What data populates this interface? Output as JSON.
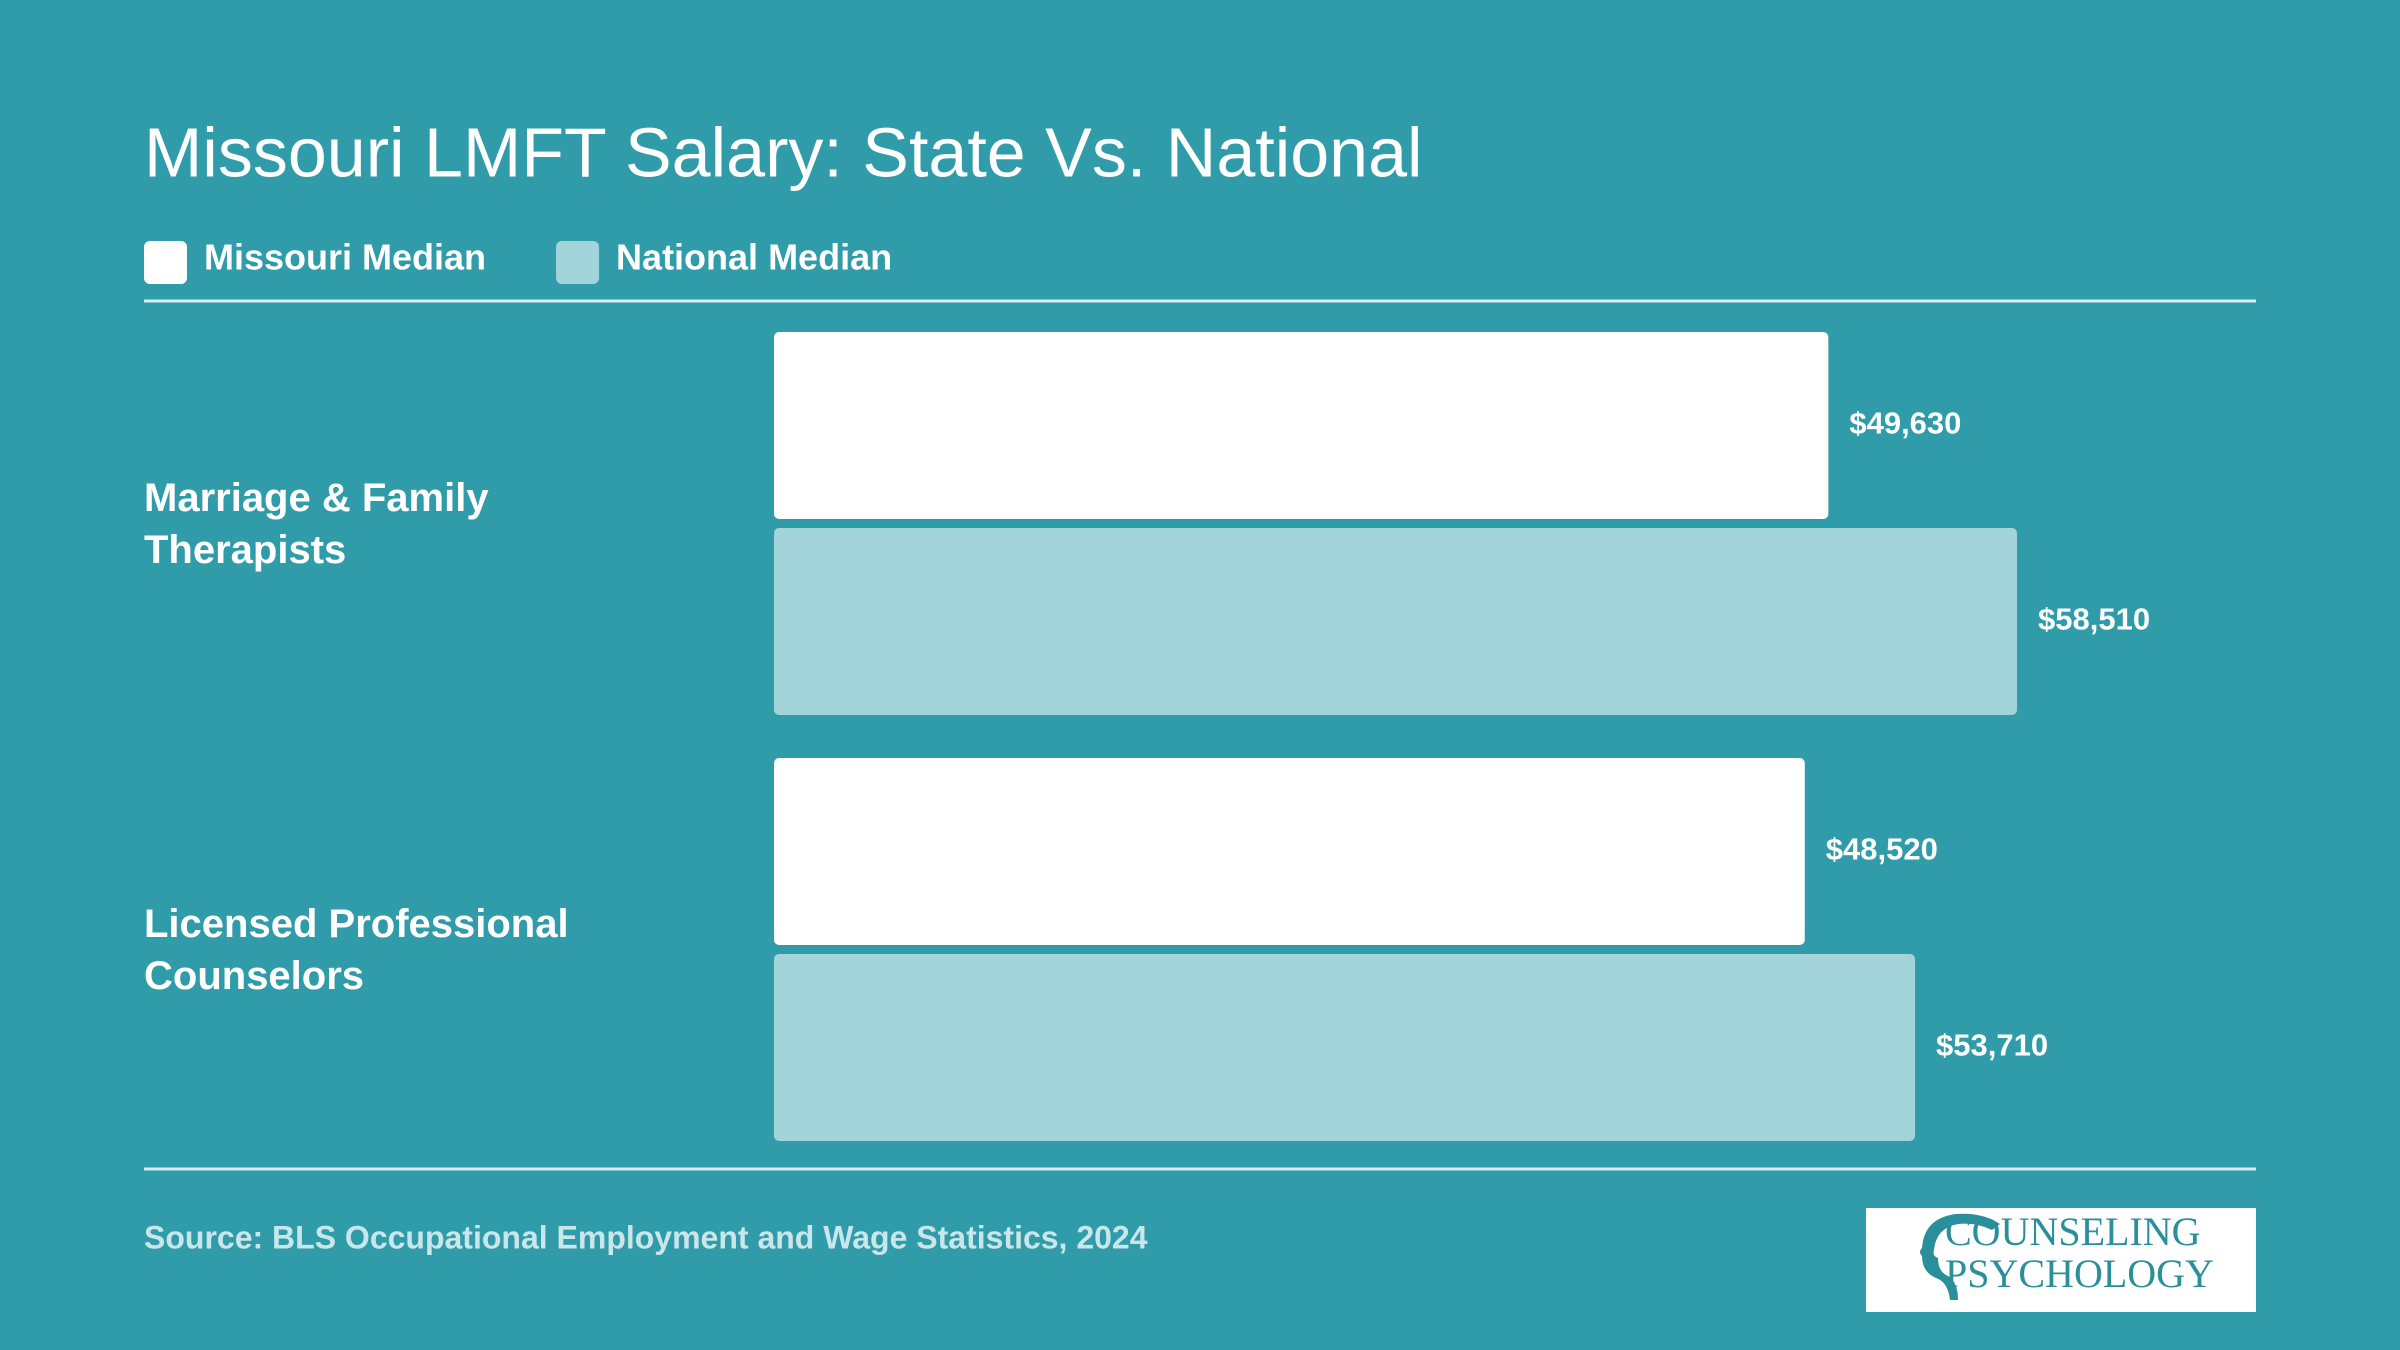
{
  "chart_data": {
    "type": "hbar",
    "title": "Missouri LMFT Salary: State Vs. National",
    "categories": [
      "Marriage & Family Therapists",
      "Licensed Professional Counselors"
    ],
    "series": [
      {
        "name": "Missouri Median",
        "color": "#ffffff",
        "values": [
          49630,
          48520
        ],
        "value_labels": [
          "$49,630",
          "$48,520"
        ]
      },
      {
        "name": "National Median",
        "color": "#a3d4d9",
        "values": [
          58510,
          53710
        ],
        "value_labels": [
          "$58,510",
          "$53,710"
        ]
      }
    ],
    "source": "Source: BLS Occupational Employment and Wage Statistics, 2024"
  },
  "logo": {
    "lines": [
      "COUNSELING",
      "PSYCHOLOGY"
    ]
  }
}
